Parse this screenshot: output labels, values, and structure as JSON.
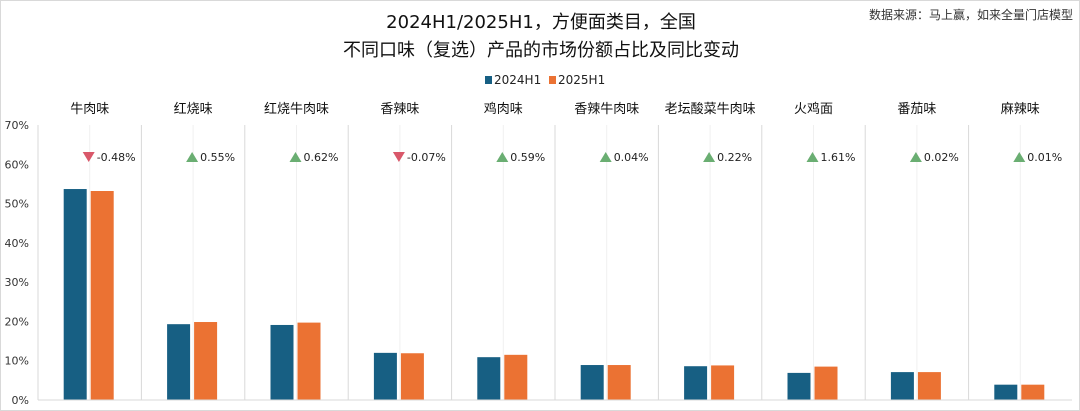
{
  "chart_data": {
    "type": "bar",
    "title_line1": "2024H1/2025H1，方便面类目，全国",
    "title_line2": "不同口味（复选）产品的市场份额占比及同比变动",
    "source": "数据来源：马上赢，如来全量门店模型",
    "categories": [
      "牛肉味",
      "红烧味",
      "红烧牛肉味",
      "香辣味",
      "鸡肉味",
      "香辣牛肉味",
      "老坛酸菜牛肉味",
      "火鸡面",
      "番茄味",
      "麻辣味"
    ],
    "series": [
      {
        "name": "2024H1",
        "color": "#175f83",
        "values": [
          53.7,
          19.3,
          19.1,
          12.0,
          10.9,
          8.9,
          8.6,
          6.9,
          7.1,
          3.9
        ]
      },
      {
        "name": "2025H1",
        "color": "#eb7233",
        "values": [
          53.2,
          19.85,
          19.7,
          11.9,
          11.5,
          8.9,
          8.8,
          8.5,
          7.1,
          3.9
        ]
      }
    ],
    "changes": [
      "-0.48%",
      "0.55%",
      "0.62%",
      "-0.07%",
      "0.59%",
      "0.04%",
      "0.22%",
      "1.61%",
      "0.02%",
      "0.01%"
    ],
    "change_direction": [
      "down",
      "up",
      "up",
      "down",
      "up",
      "up",
      "up",
      "up",
      "up",
      "up"
    ],
    "up_color": "#6aae72",
    "down_color": "#d9586a",
    "ylim": [
      0,
      70
    ],
    "yticks": [
      "0%",
      "10%",
      "20%",
      "30%",
      "40%",
      "50%",
      "60%",
      "70%"
    ],
    "legend_position": "top-center",
    "grid": false
  }
}
